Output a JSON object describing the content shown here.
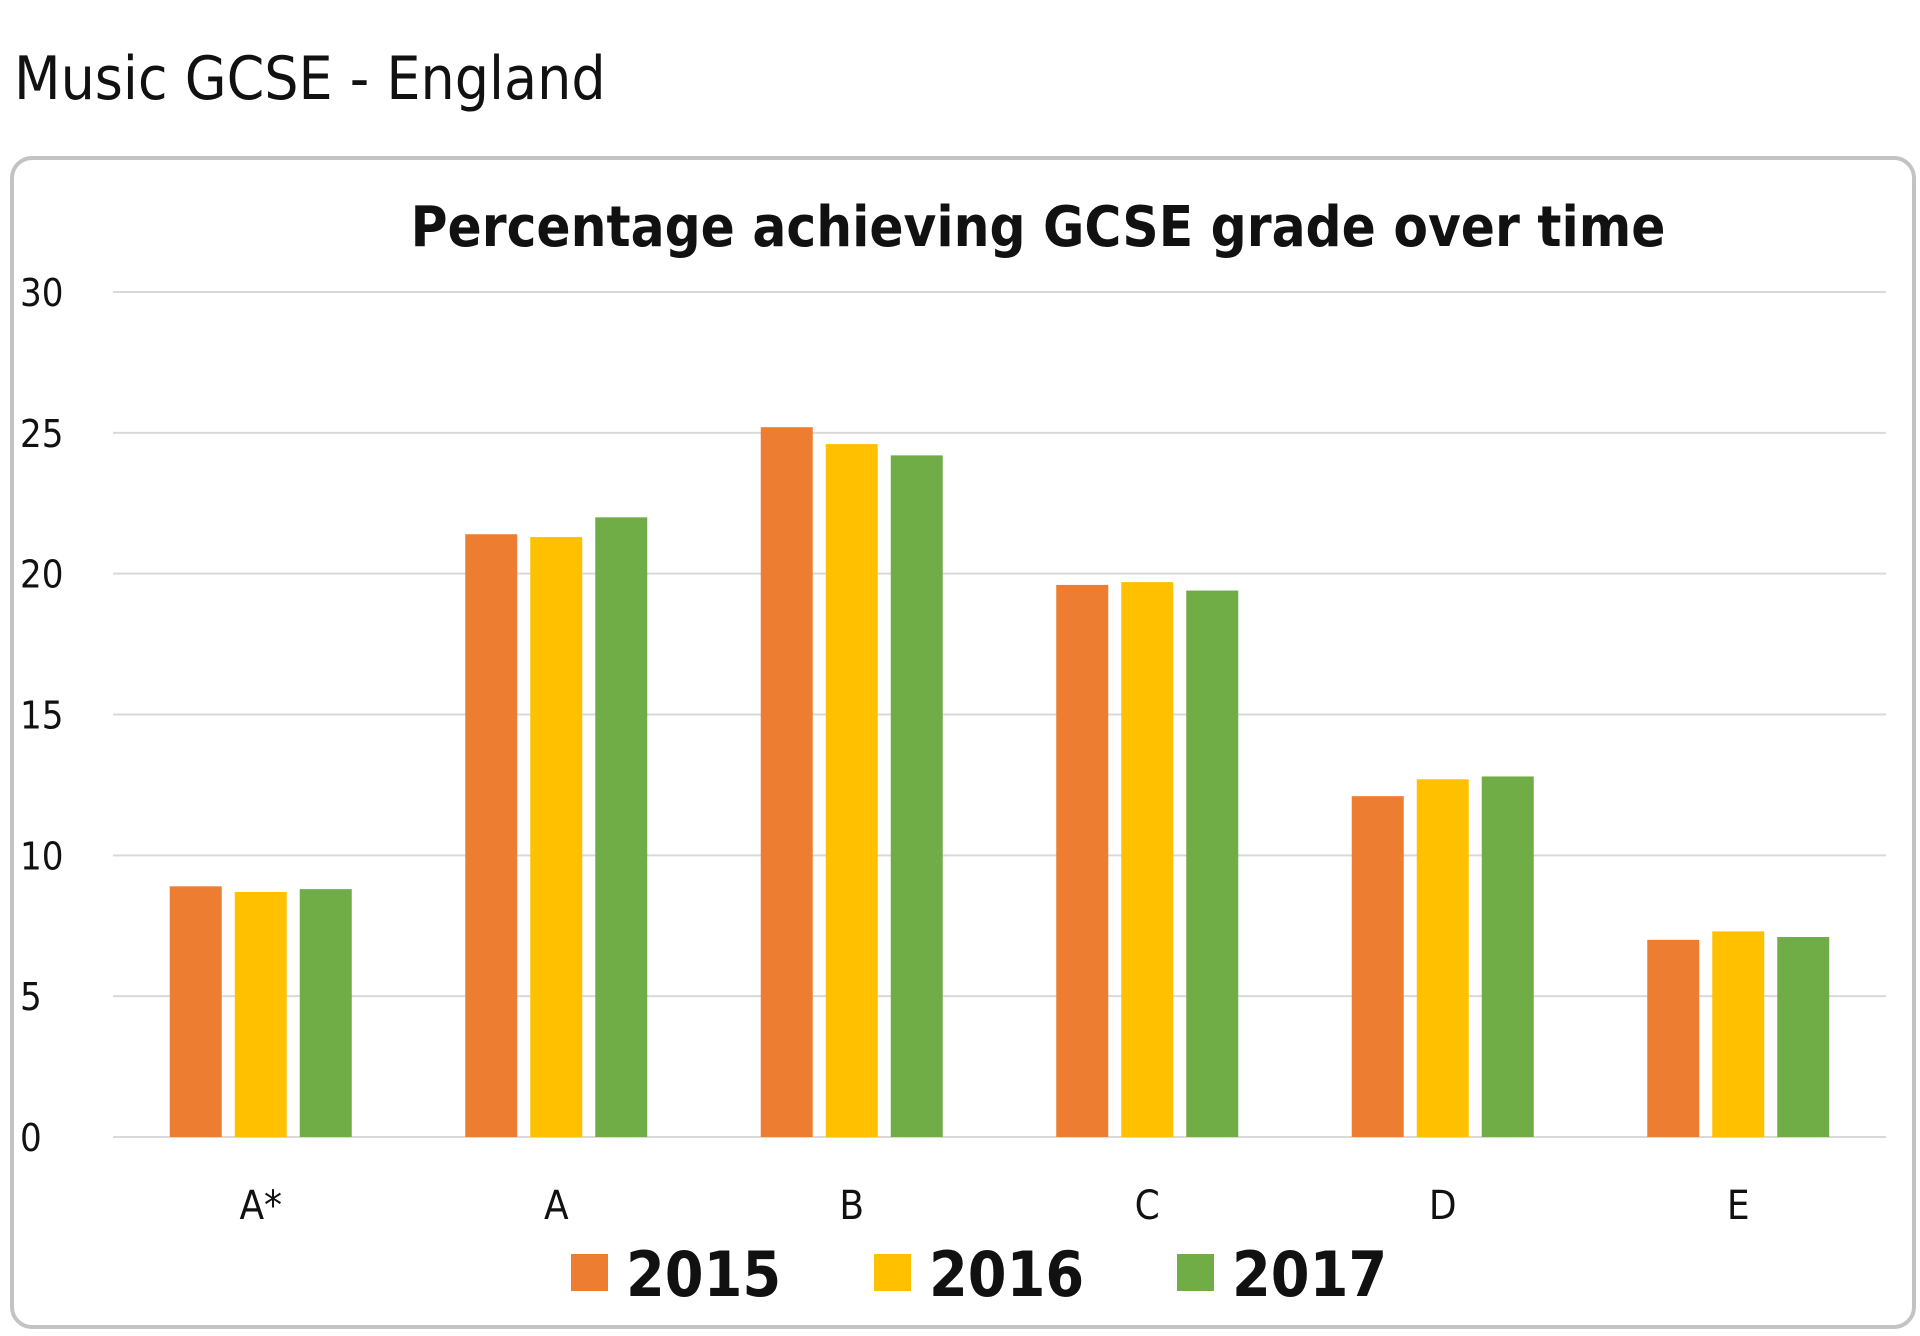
{
  "page_title": "Music GCSE - England",
  "chart_data": {
    "type": "bar",
    "title": "Percentage achieving GCSE grade over time",
    "xlabel": "",
    "ylabel": "",
    "ylim": [
      0,
      30
    ],
    "yticks": [
      0,
      5,
      10,
      15,
      20,
      25,
      30
    ],
    "grid": true,
    "legend_position": "bottom",
    "categories": [
      "A*",
      "A",
      "B",
      "C",
      "D",
      "E"
    ],
    "series": [
      {
        "name": "2015",
        "color": "#ED7D31",
        "values": [
          8.9,
          21.4,
          25.2,
          19.6,
          12.1,
          7.0
        ]
      },
      {
        "name": "2016",
        "color": "#FFC000",
        "values": [
          8.7,
          21.3,
          24.6,
          19.7,
          12.7,
          7.3
        ]
      },
      {
        "name": "2017",
        "color": "#70AD47",
        "values": [
          8.8,
          22.0,
          24.2,
          19.4,
          12.8,
          7.1
        ]
      }
    ]
  }
}
